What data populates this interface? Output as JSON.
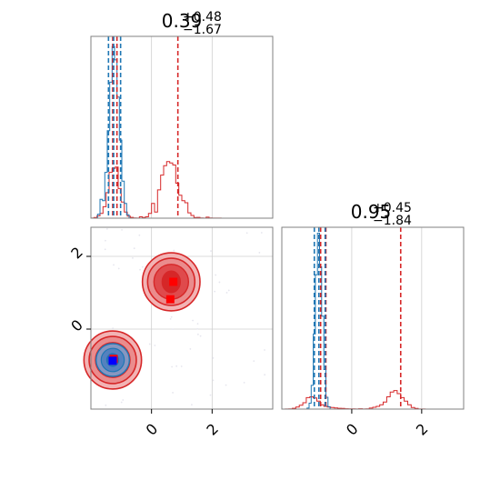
{
  "chart_data": [
    {
      "type": "histogram",
      "panel": "top-left",
      "title": {
        "value": "0.39",
        "upper": "+0.48",
        "lower": "−1.67"
      },
      "xlim": [
        -2.0,
        4.0
      ],
      "grid": true,
      "grid_x": [
        0,
        2
      ],
      "series": [
        {
          "color": "#d62728",
          "bins": [
            [
              -2.0,
              0.2
            ],
            [
              -1.9,
              1.0
            ],
            [
              -1.8,
              3.5
            ],
            [
              -1.7,
              7.0
            ],
            [
              -1.6,
              17.0
            ],
            [
              -1.5,
              38.0
            ],
            [
              -1.4,
              68.0
            ],
            [
              -1.3,
              74.0
            ],
            [
              -1.2,
              76.0
            ],
            [
              -1.1,
              44.0
            ],
            [
              -1.0,
              24.0
            ],
            [
              -0.9,
              9.0
            ],
            [
              -0.8,
              3.0
            ],
            [
              -0.7,
              1.2
            ],
            [
              -0.6,
              0.4
            ],
            [
              -0.5,
              0.2
            ],
            [
              -0.4,
              2.0
            ],
            [
              -0.3,
              1.0
            ],
            [
              -0.2,
              2.0
            ],
            [
              -0.1,
              7.0
            ],
            [
              0.0,
              22.0
            ],
            [
              0.1,
              9.0
            ],
            [
              0.2,
              42.0
            ],
            [
              0.3,
              64.0
            ],
            [
              0.4,
              78.0
            ],
            [
              0.5,
              84.0
            ],
            [
              0.6,
              82.0
            ],
            [
              0.7,
              79.0
            ],
            [
              0.8,
              52.0
            ],
            [
              0.9,
              34.0
            ],
            [
              1.0,
              26.0
            ],
            [
              1.1,
              23.0
            ],
            [
              1.2,
              8.0
            ],
            [
              1.3,
              4.0
            ],
            [
              1.4,
              1.0
            ],
            [
              1.5,
              1.2
            ],
            [
              1.6,
              0.3
            ],
            [
              1.7,
              0.2
            ],
            [
              1.8,
              1.5
            ],
            [
              1.9,
              0.3
            ],
            [
              2.0,
              0.2
            ],
            [
              2.1,
              0.2
            ],
            [
              2.2,
              0.2
            ]
          ],
          "quantiles": [
            -1.28,
            -1.14,
            0.87
          ]
        },
        {
          "color": "#1f77b4",
          "bins": [
            [
              -1.86,
              0.0
            ],
            [
              -1.78,
              6.0
            ],
            [
              -1.7,
              28.0
            ],
            [
              -1.62,
              26.0
            ],
            [
              -1.54,
              68.0
            ],
            [
              -1.46,
              130.0
            ],
            [
              -1.38,
              202.0
            ],
            [
              -1.3,
              255.0
            ],
            [
              -1.22,
              235.0
            ],
            [
              -1.14,
              180.0
            ],
            [
              -1.06,
              116.0
            ],
            [
              -0.98,
              55.0
            ],
            [
              -0.9,
              22.0
            ],
            [
              -0.82,
              5.0
            ]
          ],
          "quantiles": [
            -1.42,
            -1.25,
            -1.02
          ]
        }
      ],
      "ymax": 270
    },
    {
      "type": "scatter",
      "panel": "bottom-left",
      "xlim": [
        -2.0,
        4.0
      ],
      "ylim": [
        -2.2,
        2.8
      ],
      "xticks": [
        0,
        2
      ],
      "yticks": [
        0,
        2
      ],
      "grid": true,
      "red_modes": [
        {
          "x": 0.65,
          "y": 1.3
        },
        {
          "x": -1.28,
          "y": -0.85
        }
      ],
      "blue_mode": {
        "x": -1.28,
        "y": -0.85
      },
      "red_markers": [
        {
          "x": 0.72,
          "y": 1.3
        },
        {
          "x": 0.62,
          "y": 0.82
        },
        {
          "x": -1.25,
          "y": -0.82
        }
      ],
      "blue_marker": {
        "x": -1.28,
        "y": -0.87
      }
    },
    {
      "type": "histogram",
      "panel": "bottom-right",
      "title": {
        "value": "0.95",
        "upper": "+0.45",
        "lower": "−1.84"
      },
      "xlim": [
        -2.0,
        3.2
      ],
      "xticks": [
        0,
        2
      ],
      "grid": true,
      "series": [
        {
          "color": "#d62728",
          "bins": [
            [
              -1.9,
              0.5
            ],
            [
              -1.8,
              1.0
            ],
            [
              -1.7,
              4.0
            ],
            [
              -1.6,
              10.0
            ],
            [
              -1.5,
              20.0
            ],
            [
              -1.4,
              32.0
            ],
            [
              -1.3,
              58.0
            ],
            [
              -1.2,
              62.0
            ],
            [
              -1.1,
              56.0
            ],
            [
              -1.0,
              40.0
            ],
            [
              -0.9,
              22.0
            ],
            [
              -0.8,
              14.0
            ],
            [
              -0.7,
              10.0
            ],
            [
              -0.6,
              8.0
            ],
            [
              -0.5,
              6.0
            ],
            [
              -0.4,
              4.0
            ],
            [
              -0.3,
              3.0
            ],
            [
              -0.2,
              2.0
            ],
            [
              -0.1,
              1.0
            ],
            [
              0.0,
              1.0
            ],
            [
              0.1,
              0.5
            ],
            [
              0.2,
              2.0
            ],
            [
              0.3,
              0.5
            ],
            [
              0.4,
              1.0
            ],
            [
              0.5,
              5.0
            ],
            [
              0.6,
              9.0
            ],
            [
              0.7,
              14.0
            ],
            [
              0.8,
              22.0
            ],
            [
              0.9,
              36.0
            ],
            [
              1.0,
              62.0
            ],
            [
              1.1,
              86.0
            ],
            [
              1.2,
              94.0
            ],
            [
              1.3,
              78.0
            ],
            [
              1.4,
              58.0
            ],
            [
              1.5,
              40.0
            ],
            [
              1.6,
              22.0
            ],
            [
              1.7,
              8.0
            ],
            [
              1.8,
              3.0
            ],
            [
              1.9,
              0.5
            ],
            [
              2.0,
              0.5
            ]
          ],
          "quantiles": [
            -0.89,
            -0.74,
            1.4
          ]
        },
        {
          "color": "#1f77b4",
          "bins": [
            [
              -1.34,
              0.0
            ],
            [
              -1.28,
              5.0
            ],
            [
              -1.22,
              30.0
            ],
            [
              -1.16,
              120.0
            ],
            [
              -1.1,
              380.0
            ],
            [
              -1.04,
              680.0
            ],
            [
              -0.98,
              890.0
            ],
            [
              -0.92,
              720.0
            ],
            [
              -0.86,
              470.0
            ],
            [
              -0.8,
              200.0
            ],
            [
              -0.74,
              60.0
            ],
            [
              -0.68,
              12.0
            ],
            [
              -0.62,
              0.0
            ]
          ],
          "quantiles": [
            -1.07,
            -0.94,
            -0.76
          ]
        }
      ],
      "ymax": 920
    }
  ]
}
